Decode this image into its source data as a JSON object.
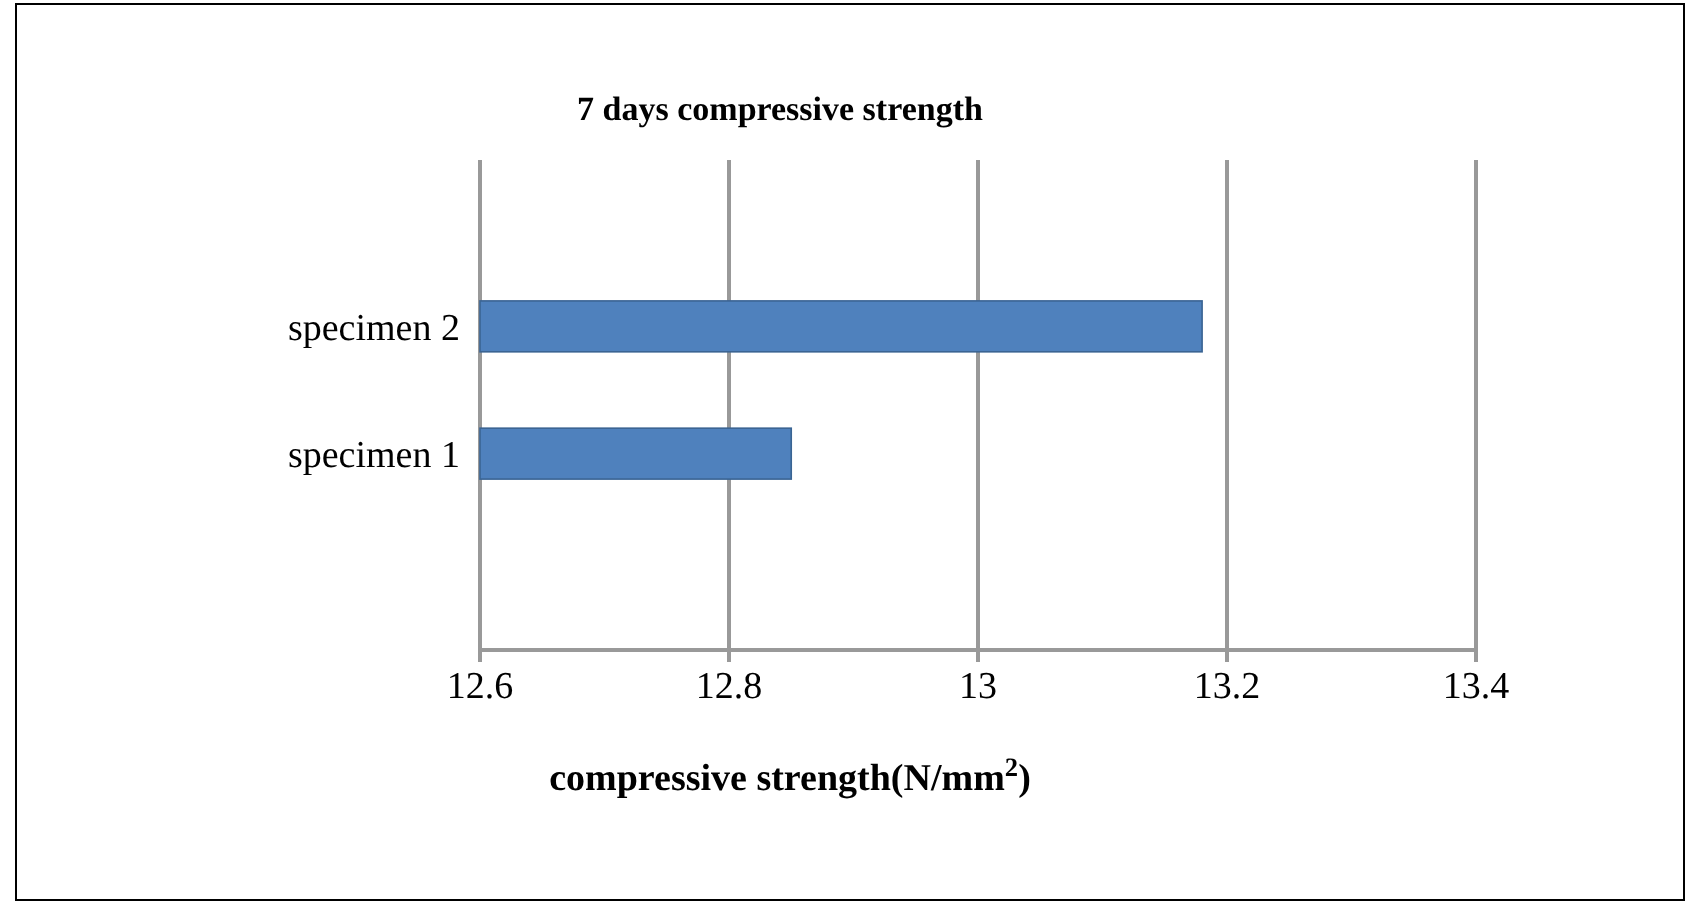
{
  "chart_data": {
    "type": "bar",
    "orientation": "horizontal",
    "title": "7 days compressive strength",
    "xlabel": "compressive strength(N/mm$^{2}$)",
    "categories": [
      "specimen 2",
      "specimen 1"
    ],
    "values": [
      13.18,
      12.85
    ],
    "color": "#4f81bd",
    "xlim": [
      12.6,
      13.4
    ],
    "xticks": [
      12.6,
      12.8,
      13,
      13.2,
      13.4
    ],
    "grid": "x"
  }
}
